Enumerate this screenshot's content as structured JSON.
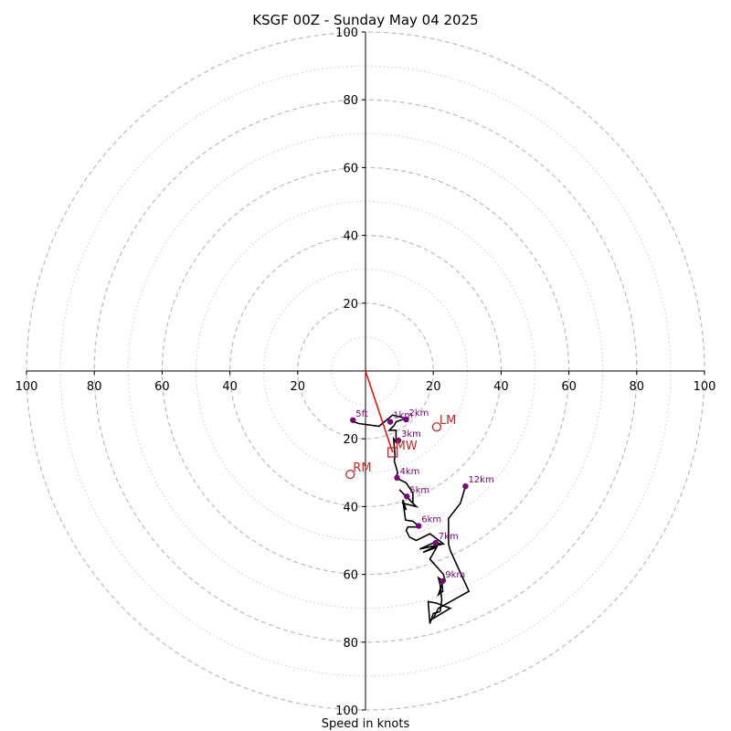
{
  "chart_data": {
    "type": "hodograph",
    "title": "KSGF 00Z - Sunday May 04 2025",
    "xlabel": "Speed in knots",
    "range": 100,
    "major_rings": [
      20,
      40,
      60,
      80,
      100
    ],
    "minor_rings": [
      10,
      30,
      50,
      70,
      90
    ],
    "ticks": {
      "x_left": [
        "100",
        "80",
        "60",
        "40",
        "20"
      ],
      "x_right": [
        "20",
        "40",
        "60",
        "80",
        "100"
      ],
      "y_up": [
        "20",
        "40",
        "60",
        "80",
        "100"
      ],
      "y_down": [
        "20",
        "40",
        "60",
        "80",
        "100"
      ]
    },
    "trace": {
      "color": "#000000",
      "points": [
        [
          -3.5,
          -15
        ],
        [
          -2,
          -15.5
        ],
        [
          4,
          -16.3
        ],
        [
          8,
          -13
        ],
        [
          12,
          -14
        ],
        [
          9,
          -15
        ],
        [
          8.5,
          -16
        ],
        [
          7,
          -17.5
        ],
        [
          9,
          -17.5
        ],
        [
          9,
          -21
        ],
        [
          8.3,
          -20
        ],
        [
          8.7,
          -25
        ],
        [
          8.5,
          -26.5
        ],
        [
          9.5,
          -30
        ],
        [
          9,
          -31.5
        ],
        [
          12,
          -33
        ],
        [
          14,
          -36
        ],
        [
          14,
          -39
        ],
        [
          10,
          -35
        ],
        [
          13,
          -38
        ],
        [
          15,
          -40
        ],
        [
          11,
          -39
        ],
        [
          12,
          -41
        ],
        [
          11,
          -38
        ],
        [
          11.8,
          -44
        ],
        [
          14,
          -44.3
        ],
        [
          16,
          -46
        ],
        [
          12.5,
          -46
        ],
        [
          12,
          -47
        ],
        [
          13,
          -49
        ],
        [
          15,
          -50
        ],
        [
          19,
          -48
        ],
        [
          23,
          -51
        ],
        [
          16,
          -52.5
        ],
        [
          20.5,
          -50.5
        ],
        [
          22,
          -51
        ],
        [
          17,
          -53.5
        ],
        [
          21,
          -52
        ],
        [
          19,
          -55.5
        ],
        [
          23,
          -60
        ],
        [
          23.5,
          -62
        ],
        [
          22.5,
          -62.3
        ],
        [
          22.8,
          -65
        ],
        [
          21.5,
          -66
        ],
        [
          22,
          -64.5
        ],
        [
          23,
          -62
        ],
        [
          21.5,
          -61
        ],
        [
          22,
          -63
        ],
        [
          22.5,
          -67.5
        ],
        [
          22,
          -71
        ],
        [
          20,
          -71.5
        ],
        [
          19,
          -74.5
        ],
        [
          18.5,
          -68
        ],
        [
          21,
          -68.5
        ],
        [
          25,
          -70
        ],
        [
          20,
          -73
        ],
        [
          21.5,
          -70
        ],
        [
          30.5,
          -65
        ],
        [
          25,
          -53
        ],
        [
          24.5,
          -51
        ],
        [
          24.5,
          -43.5
        ],
        [
          28,
          -39
        ],
        [
          29.5,
          -34
        ]
      ]
    },
    "height_markers": {
      "color": "#800080",
      "points": [
        {
          "label": "5ft",
          "u": -3.7,
          "v": -14.5
        },
        {
          "label": "1km",
          "u": 7.3,
          "v": -15
        },
        {
          "label": "2km",
          "u": 12,
          "v": -14.3
        },
        {
          "label": "3km",
          "u": 9.7,
          "v": -20.5
        },
        {
          "label": "4km",
          "u": 9.3,
          "v": -31.5
        },
        {
          "label": "5km",
          "u": 12.2,
          "v": -37
        },
        {
          "label": "6km",
          "u": 15.7,
          "v": -45.7
        },
        {
          "label": "7km",
          "u": 20.7,
          "v": -50.7
        },
        {
          "label": "9km",
          "u": 22.7,
          "v": -62
        },
        {
          "label": "12km",
          "u": 29.5,
          "v": -34
        }
      ]
    },
    "storm_motion": {
      "color": "#cc2222",
      "vector_color": "#ff0000",
      "markers": [
        {
          "label": "LM",
          "shape": "circle",
          "u": 21,
          "v": -16.5
        },
        {
          "label": "RM",
          "shape": "circle",
          "u": -4.5,
          "v": -30.5
        },
        {
          "label": "MW",
          "shape": "square",
          "u": 8,
          "v": -24
        }
      ]
    }
  }
}
